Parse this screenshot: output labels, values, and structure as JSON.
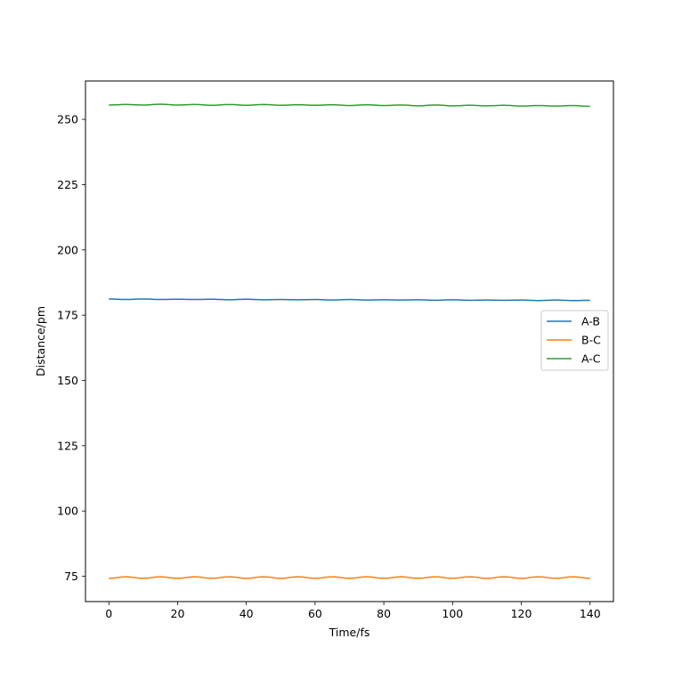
{
  "chart_data": {
    "type": "line",
    "title": "",
    "xlabel": "Time/fs",
    "ylabel": "Distance/pm",
    "xlim": [
      -6.8,
      146.8
    ],
    "ylim": [
      65.3,
      264.7
    ],
    "xticks": [
      0,
      20,
      40,
      60,
      80,
      100,
      120,
      140
    ],
    "xtick_labels": [
      "0",
      "20",
      "40",
      "60",
      "80",
      "100",
      "120",
      "140"
    ],
    "yticks": [
      75,
      100,
      125,
      150,
      175,
      200,
      225,
      250
    ],
    "ytick_labels": [
      "75",
      "100",
      "125",
      "150",
      "175",
      "200",
      "225",
      "250"
    ],
    "grid": false,
    "legend_position": "center-right",
    "x": [
      0,
      5,
      10,
      15,
      20,
      25,
      30,
      35,
      40,
      45,
      50,
      55,
      60,
      65,
      70,
      75,
      80,
      85,
      90,
      95,
      100,
      105,
      110,
      115,
      120,
      125,
      130,
      135,
      140
    ],
    "series": [
      {
        "name": "A-B",
        "color": "#1f77b4",
        "values": [
          181.2,
          181.0,
          181.2,
          181.0,
          181.1,
          181.0,
          181.1,
          180.9,
          181.1,
          180.9,
          181.0,
          180.9,
          181.0,
          180.8,
          181.0,
          180.8,
          180.9,
          180.8,
          180.9,
          180.7,
          180.9,
          180.7,
          180.8,
          180.7,
          180.8,
          180.6,
          180.8,
          180.6,
          180.7
        ]
      },
      {
        "name": "B-C",
        "color": "#ff7f0e",
        "values": [
          74.2,
          74.8,
          74.2,
          74.8,
          74.2,
          74.8,
          74.2,
          74.8,
          74.2,
          74.8,
          74.2,
          74.8,
          74.2,
          74.8,
          74.2,
          74.8,
          74.2,
          74.8,
          74.2,
          74.8,
          74.2,
          74.8,
          74.2,
          74.8,
          74.2,
          74.8,
          74.2,
          74.8,
          74.2
        ]
      },
      {
        "name": "A-C",
        "color": "#2ca02c",
        "values": [
          255.5,
          255.7,
          255.5,
          255.8,
          255.5,
          255.7,
          255.4,
          255.7,
          255.4,
          255.7,
          255.4,
          255.6,
          255.4,
          255.6,
          255.3,
          255.6,
          255.3,
          255.5,
          255.2,
          255.5,
          255.2,
          255.4,
          255.2,
          255.4,
          255.1,
          255.3,
          255.1,
          255.3,
          255.0
        ]
      }
    ]
  }
}
